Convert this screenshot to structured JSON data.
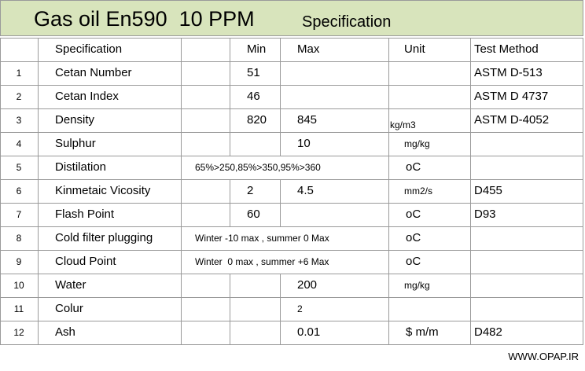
{
  "title": {
    "main": "Gas oil En590  10 PPM",
    "sub": "Specification"
  },
  "table": {
    "header": {
      "spec": "Specification",
      "min": "Min",
      "max": "Max",
      "unit": "Unit",
      "test": "Test Method"
    },
    "rows": [
      {
        "no": "1",
        "spec": "Cetan Number",
        "min": "51",
        "test": "ASTM D-513"
      },
      {
        "no": "2",
        "spec": "Cetan Index",
        "min": "46",
        "test": "ASTM D 4737"
      },
      {
        "no": "3",
        "spec": "Density",
        "min": "820",
        "max": "845",
        "unit": "kg/m3",
        "test": "ASTM D-4052"
      },
      {
        "no": "4",
        "spec": "Sulphur",
        "max": "10",
        "unit": "mg/kg"
      },
      {
        "no": "5",
        "spec": "Distilation",
        "range": "65%>250,85%>350,95%>360",
        "unit": "oC"
      },
      {
        "no": "6",
        "spec": "Kinmetaic Vicosity",
        "min": "2",
        "max": "4.5",
        "unit": "mm2/s",
        "test": "D455"
      },
      {
        "no": "7",
        "spec": "Flash Point",
        "min": "60",
        "unit": "oC",
        "test": "D93"
      },
      {
        "no": "8",
        "spec": "Cold filter plugging",
        "range": "Winter -10 max , summer 0 Max",
        "unit": "oC"
      },
      {
        "no": "9",
        "spec": "Cloud Point",
        "range": "Winter  0 max , summer +6 Max",
        "unit": "oC"
      },
      {
        "no": "10",
        "spec": "Water",
        "max": "200",
        "unit": "mg/kg"
      },
      {
        "no": "11",
        "spec": "Colur",
        "max": "2"
      },
      {
        "no": "12",
        "spec": "Ash",
        "max": "0.01",
        "unit": "$ m/m",
        "test": "D482"
      }
    ]
  },
  "footer": "WWW.OPAP.IR"
}
